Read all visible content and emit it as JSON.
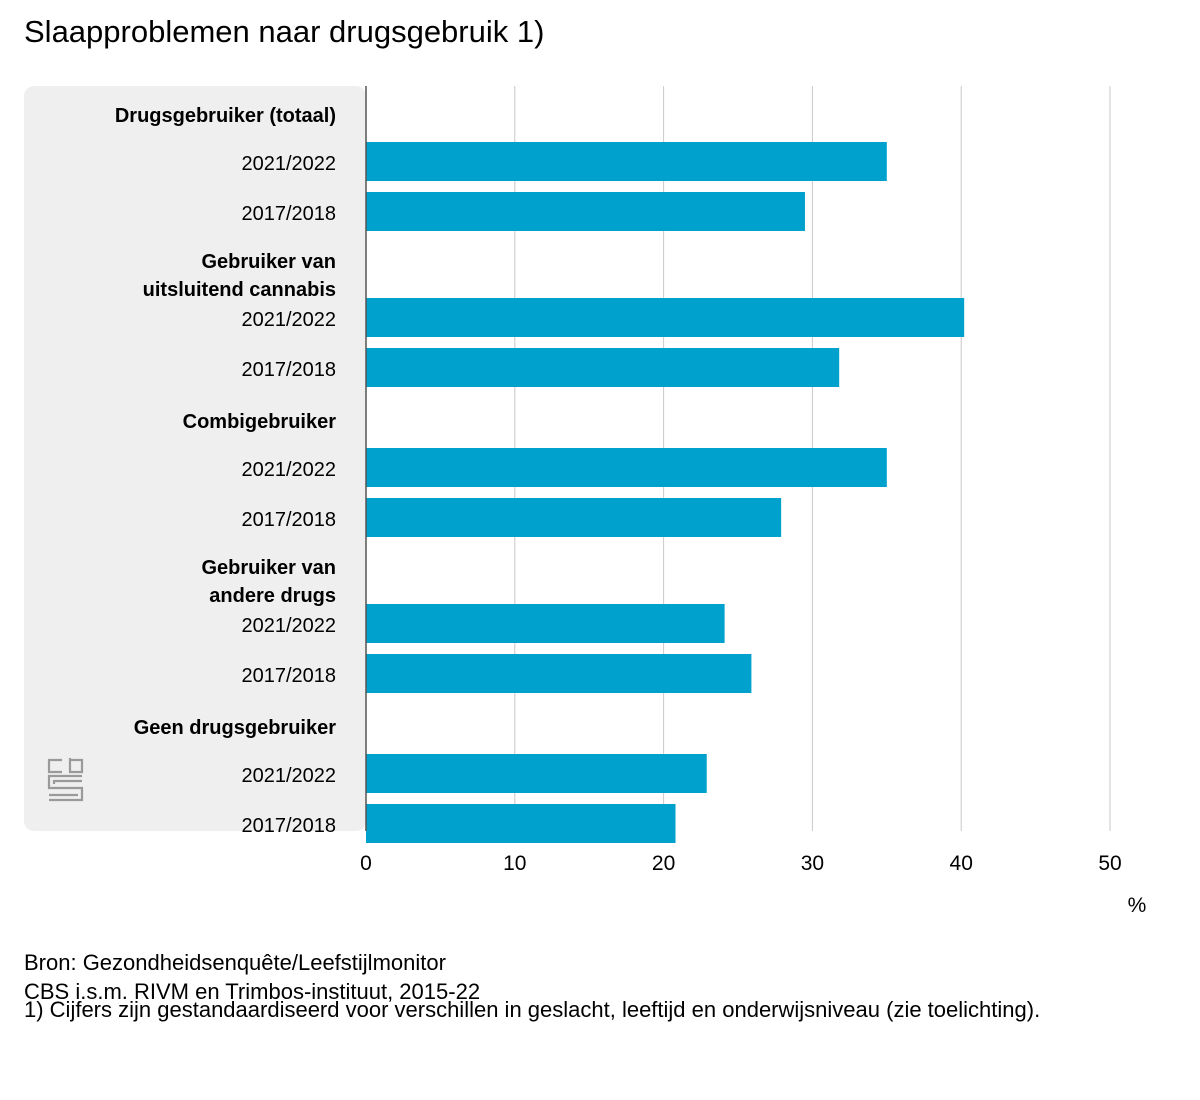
{
  "title": "Slaapproblemen naar drugsgebruik 1)",
  "source_line1": "Bron: Gezondheidsenquête/Leefstijlmonitor",
  "source_line2": "CBS i.s.m. RIVM en Trimbos-instituut, 2015-22",
  "footnote": "1) Cijfers zijn gestandaardiseerd voor verschillen in geslacht, leeftijd en onderwijsniveau (zie toelichting).",
  "logo_name": "cbs-logo-icon",
  "colors": {
    "bar": "#00a1cd",
    "panel": "#efefef",
    "grid": "#c8c8c8",
    "axis": "#555555"
  },
  "chart_data": {
    "type": "bar",
    "orientation": "horizontal",
    "xlabel": "%",
    "xlim": [
      0,
      50
    ],
    "xticks": [
      0,
      10,
      20,
      30,
      40,
      50
    ],
    "grid": true,
    "groups": [
      {
        "label": [
          "Drugsgebruiker (totaal)"
        ],
        "bars": [
          {
            "label": "2021/2022",
            "value": 35.0
          },
          {
            "label": "2017/2018",
            "value": 29.5
          }
        ]
      },
      {
        "label": [
          "Gebruiker van",
          "uitsluitend cannabis"
        ],
        "bars": [
          {
            "label": "2021/2022",
            "value": 40.2
          },
          {
            "label": "2017/2018",
            "value": 31.8
          }
        ]
      },
      {
        "label": [
          "Combigebruiker"
        ],
        "bars": [
          {
            "label": "2021/2022",
            "value": 35.0
          },
          {
            "label": "2017/2018",
            "value": 27.9
          }
        ]
      },
      {
        "label": [
          "Gebruiker van",
          "andere drugs"
        ],
        "bars": [
          {
            "label": "2021/2022",
            "value": 24.1
          },
          {
            "label": "2017/2018",
            "value": 25.9
          }
        ]
      },
      {
        "label": [
          "Geen drugsgebruiker"
        ],
        "bars": [
          {
            "label": "2021/2022",
            "value": 22.9
          },
          {
            "label": "2017/2018",
            "value": 20.8
          }
        ]
      }
    ]
  }
}
